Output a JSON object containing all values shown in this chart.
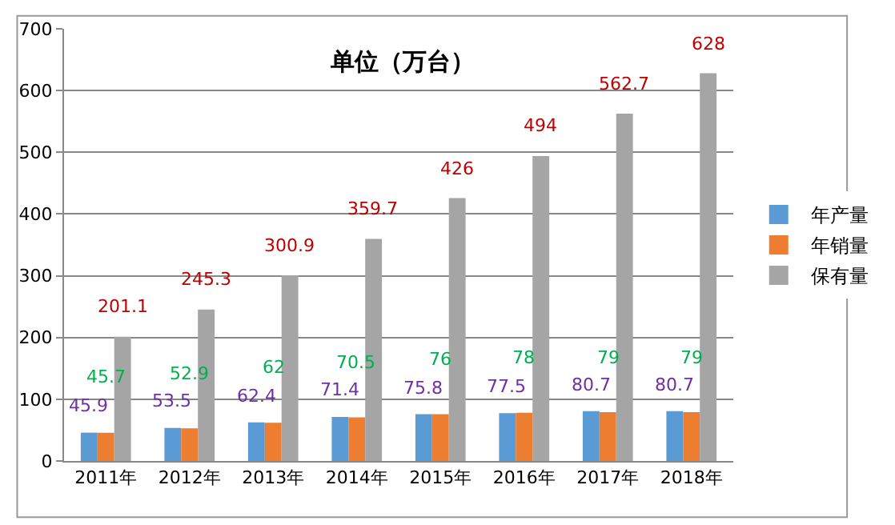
{
  "chart_data": {
    "type": "bar",
    "title": "单位（万台）",
    "categories": [
      "2011年",
      "2012年",
      "2013年",
      "2014年",
      "2015年",
      "2016年",
      "2017年",
      "2018年"
    ],
    "series": [
      {
        "name": "年产量",
        "color": "#5b9bd5",
        "values": [
          45.9,
          53.5,
          62.4,
          71.4,
          75.8,
          77.5,
          80.7,
          80.7
        ]
      },
      {
        "name": "年销量",
        "color": "#ed7d31",
        "values": [
          45.7,
          52.9,
          62,
          70.5,
          76,
          78,
          79,
          79
        ]
      },
      {
        "name": "保有量",
        "color": "#a5a5a5",
        "values": [
          201.1,
          245.3,
          300.9,
          359.7,
          426,
          494,
          562.7,
          628
        ]
      }
    ],
    "ylim": [
      0,
      700
    ],
    "yticks": [
      0,
      100,
      200,
      300,
      400,
      500,
      600,
      700
    ],
    "grid": "y",
    "legend": "right",
    "data_labels": true
  }
}
